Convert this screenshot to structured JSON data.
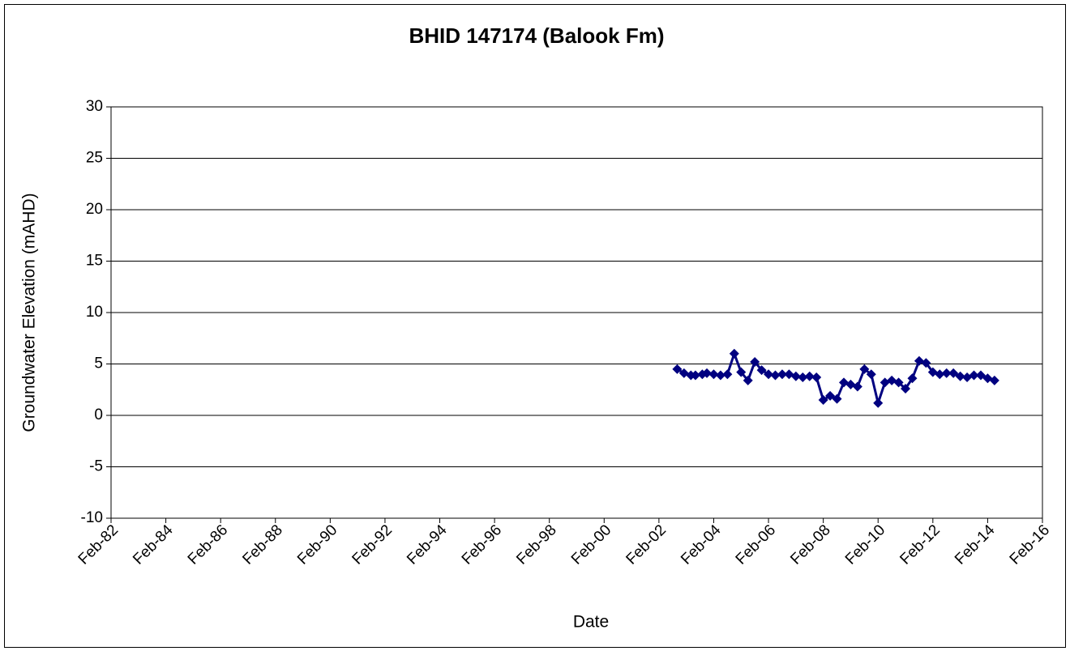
{
  "chart_data": {
    "type": "line",
    "title": "BHID 147174 (Balook Fm)",
    "x_label": "Date",
    "y_label": "Groundwater Elevation (mAHD)",
    "x": [
      "2002-10",
      "2003-01",
      "2003-04",
      "2003-06",
      "2003-09",
      "2003-11",
      "2004-02",
      "2004-05",
      "2004-08",
      "2004-11",
      "2005-02",
      "2005-05",
      "2005-08",
      "2005-11",
      "2006-02",
      "2006-05",
      "2006-08",
      "2006-11",
      "2007-02",
      "2007-05",
      "2007-08",
      "2007-11",
      "2008-02",
      "2008-05",
      "2008-08",
      "2008-11",
      "2009-02",
      "2009-05",
      "2009-08",
      "2009-11",
      "2010-02",
      "2010-05",
      "2010-08",
      "2010-11",
      "2011-02",
      "2011-05",
      "2011-08",
      "2011-11",
      "2012-02",
      "2012-05",
      "2012-08",
      "2012-11",
      "2013-02",
      "2013-05",
      "2013-08",
      "2013-11",
      "2014-02",
      "2014-05"
    ],
    "series": [
      {
        "color": "#000080",
        "values": [
          4.5,
          4.1,
          3.9,
          3.9,
          4.0,
          4.1,
          4.0,
          3.9,
          4.0,
          6.0,
          4.2,
          3.4,
          5.2,
          4.4,
          4.0,
          3.9,
          4.0,
          4.0,
          3.8,
          3.7,
          3.8,
          3.7,
          1.5,
          1.9,
          1.6,
          3.2,
          3.0,
          2.8,
          4.5,
          4.0,
          1.2,
          3.2,
          3.4,
          3.2,
          2.6,
          3.6,
          5.3,
          5.1,
          4.2,
          4.0,
          4.1,
          4.1,
          3.8,
          3.7,
          3.9,
          3.9,
          3.6,
          3.4
        ]
      }
    ],
    "xlim": [
      "1982-02",
      "2016-02"
    ],
    "xticks": [
      {
        "value": "1982-02",
        "label": "Feb-82"
      },
      {
        "value": "1984-02",
        "label": "Feb-84"
      },
      {
        "value": "1986-02",
        "label": "Feb-86"
      },
      {
        "value": "1988-02",
        "label": "Feb-88"
      },
      {
        "value": "1990-02",
        "label": "Feb-90"
      },
      {
        "value": "1992-02",
        "label": "Feb-92"
      },
      {
        "value": "1994-02",
        "label": "Feb-94"
      },
      {
        "value": "1996-02",
        "label": "Feb-96"
      },
      {
        "value": "1998-02",
        "label": "Feb-98"
      },
      {
        "value": "2000-02",
        "label": "Feb-00"
      },
      {
        "value": "2002-02",
        "label": "Feb-02"
      },
      {
        "value": "2004-02",
        "label": "Feb-04"
      },
      {
        "value": "2006-02",
        "label": "Feb-06"
      },
      {
        "value": "2008-02",
        "label": "Feb-08"
      },
      {
        "value": "2010-02",
        "label": "Feb-10"
      },
      {
        "value": "2012-02",
        "label": "Feb-12"
      },
      {
        "value": "2014-02",
        "label": "Feb-14"
      },
      {
        "value": "2016-02",
        "label": "Feb-16"
      }
    ],
    "ylim": [
      -10,
      30
    ],
    "yticks": [
      -10,
      -5,
      0,
      5,
      10,
      15,
      20,
      25,
      30
    ],
    "grid": true
  }
}
